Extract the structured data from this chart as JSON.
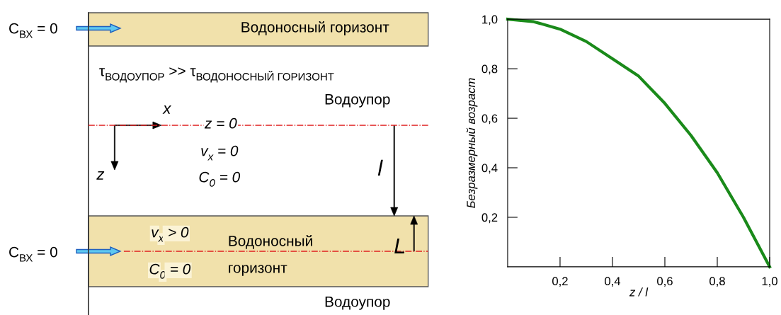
{
  "chart_data": [
    {
      "type": "other",
      "annotations": [
        "C$_{ВХ}$ = 0",
        "Водоносный горизонт",
        "τ$_{ВОДОУПОР}$ >> τ$_{ВОДОНОСНЫЙ ГОРИЗОНТ}$",
        "Водоупор",
        "x",
        "z = 0",
        "v$_{x}$ = 0",
        "z",
        "C$_{0}$ = 0",
        "l",
        "v$_{x}$ > 0",
        "Водоносный",
        "L",
        "C$_{ВХ}$ = 0",
        "C$_{0}$ = 0",
        "горизонт",
        "Водоупор"
      ]
    },
    {
      "type": "line",
      "xlabel": "z / l",
      "ylabel": "Безразмерный возраст",
      "x": [
        0,
        0.1,
        0.2,
        0.3,
        0.4,
        0.5,
        0.6,
        0.7,
        0.8,
        0.9,
        1.0
      ],
      "series": [
        {
          "color": "#1a8a1a",
          "values": [
            1.0,
            0.99,
            0.96,
            0.91,
            0.84,
            0.77,
            0.66,
            0.53,
            0.38,
            0.2,
            0.0
          ]
        }
      ],
      "xlim": [
        0,
        1
      ],
      "ylim": [
        0,
        1
      ],
      "xticks": [
        {
          "value": 0.2,
          "label": "0,2"
        },
        {
          "value": 0.4,
          "label": "0,4"
        },
        {
          "value": 0.6,
          "label": "0,6"
        },
        {
          "value": 0.8,
          "label": "0,8"
        },
        {
          "value": 1.0,
          "label": "1,0"
        }
      ],
      "yticks": [
        {
          "value": 0.2,
          "label": "0,2"
        },
        {
          "value": 0.4,
          "label": "0,4"
        },
        {
          "value": 0.6,
          "label": "0,6"
        },
        {
          "value": 0.8,
          "label": "0,8"
        },
        {
          "value": 1.0,
          "label": "1,0"
        }
      ],
      "grid": false,
      "marker": "none",
      "line_style": "solid"
    }
  ]
}
